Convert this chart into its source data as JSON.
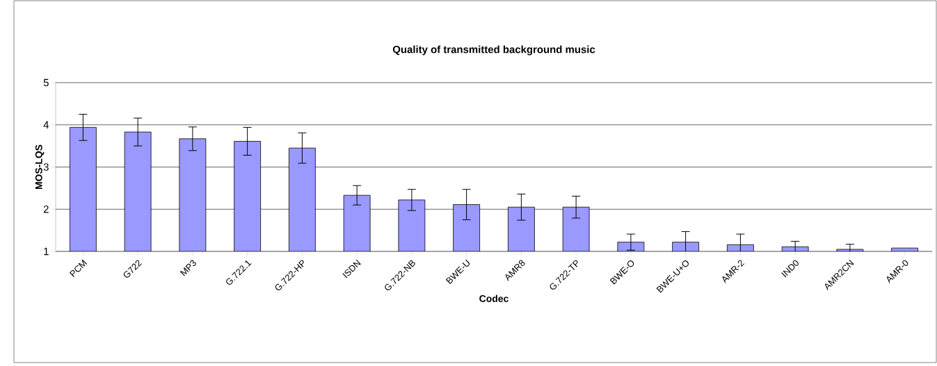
{
  "chart_data": {
    "type": "bar",
    "title": "Quality of transmitted background music",
    "xlabel": "Codec",
    "ylabel": "MOS-LQS",
    "categories": [
      "PCM",
      "G722",
      "MP3",
      "G.722.1",
      "G.722-HP",
      "ISDN",
      "G.722-NB",
      "BWE-U",
      "AMR8",
      "G.722-TP",
      "BWE-O",
      "BWE-U+O",
      "AMR-2",
      "IND0",
      "AMR2CN",
      "AMR-0"
    ],
    "values": [
      3.94,
      3.83,
      3.67,
      3.61,
      3.45,
      2.33,
      2.22,
      2.11,
      2.05,
      2.05,
      1.22,
      1.22,
      1.16,
      1.11,
      1.05,
      1.08
    ],
    "errors": [
      0.31,
      0.33,
      0.28,
      0.33,
      0.36,
      0.23,
      0.25,
      0.36,
      0.31,
      0.26,
      0.19,
      0.25,
      0.25,
      0.13,
      0.12,
      null
    ],
    "color": "#9999ff",
    "ylim": [
      1,
      5
    ],
    "yticks": [
      1,
      2,
      3,
      4,
      5
    ],
    "grid": "y"
  }
}
